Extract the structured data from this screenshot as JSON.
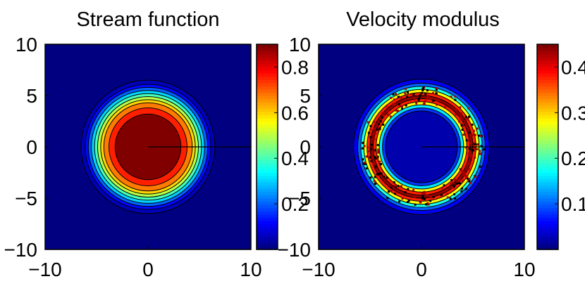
{
  "charts": [
    {
      "title": "Stream function",
      "type": "filled_contour",
      "x_ticks": [
        "−10",
        "0",
        "10"
      ],
      "y_ticks": [
        "10",
        "5",
        "0",
        "−5",
        "−10"
      ],
      "xlim": [
        -10,
        10
      ],
      "ylim": [
        -10,
        10
      ],
      "colorbar": {
        "min": 0.0,
        "max": 0.9,
        "ticks": [
          "0.8",
          "0.6",
          "0.4",
          "0.2"
        ],
        "tick_values": [
          0.8,
          0.6,
          0.4,
          0.2
        ]
      },
      "rings": [
        {
          "r": 6.5,
          "level": 0.05
        },
        {
          "r": 6.1,
          "level": 0.12
        },
        {
          "r": 5.8,
          "level": 0.2
        },
        {
          "r": 5.5,
          "level": 0.3
        },
        {
          "r": 5.2,
          "level": 0.4
        },
        {
          "r": 4.9,
          "level": 0.5
        },
        {
          "r": 4.6,
          "level": 0.6
        },
        {
          "r": 4.3,
          "level": 0.68
        },
        {
          "r": 3.8,
          "level": 0.76
        },
        {
          "r": 3.2,
          "level": 0.9
        }
      ],
      "background_level": 0.0
    },
    {
      "title": "Velocity modulus",
      "type": "filled_contour",
      "x_ticks": [
        "−10",
        "0",
        "10"
      ],
      "y_ticks": [
        "10",
        "5",
        "0",
        "−5",
        "−10"
      ],
      "xlim": [
        -10,
        10
      ],
      "ylim": [
        -10,
        10
      ],
      "colorbar": {
        "min": 0.0,
        "max": 0.45,
        "ticks": [
          "0.4",
          "0.3",
          "0.2",
          "0.1"
        ],
        "tick_values": [
          0.4,
          0.3,
          0.2,
          0.1
        ]
      },
      "rings": [
        {
          "r": 6.6,
          "level": 0.05
        },
        {
          "r": 6.2,
          "level": 0.1
        },
        {
          "r": 5.9,
          "level": 0.18
        },
        {
          "r": 5.6,
          "level": 0.28
        },
        {
          "r": 5.3,
          "level": 0.38
        },
        {
          "r": 5.0,
          "level": 0.44
        },
        {
          "r": 4.7,
          "level": 0.38
        },
        {
          "r": 4.4,
          "level": 0.28
        },
        {
          "r": 4.1,
          "level": 0.16
        },
        {
          "r": 3.8,
          "level": 0.08
        },
        {
          "r": 3.5,
          "level": 0.02
        }
      ],
      "background_level": 0.0
    }
  ],
  "chart_data": [
    {
      "type": "heatmap",
      "title": "Stream function",
      "xlim": [
        -10,
        10
      ],
      "ylim": [
        -10,
        10
      ],
      "x_ticks": [
        -10,
        0,
        10
      ],
      "y_ticks": [
        10,
        5,
        0,
        -5,
        -10
      ],
      "colorbar_range": [
        0,
        0.9
      ]
    },
    {
      "type": "heatmap",
      "title": "Velocity modulus",
      "xlim": [
        -10,
        10
      ],
      "ylim": [
        -10,
        10
      ],
      "x_ticks": [
        -10,
        0,
        10
      ],
      "y_ticks": [
        10,
        5,
        0,
        -5,
        -10
      ],
      "colorbar_range": [
        0,
        0.45
      ]
    }
  ]
}
